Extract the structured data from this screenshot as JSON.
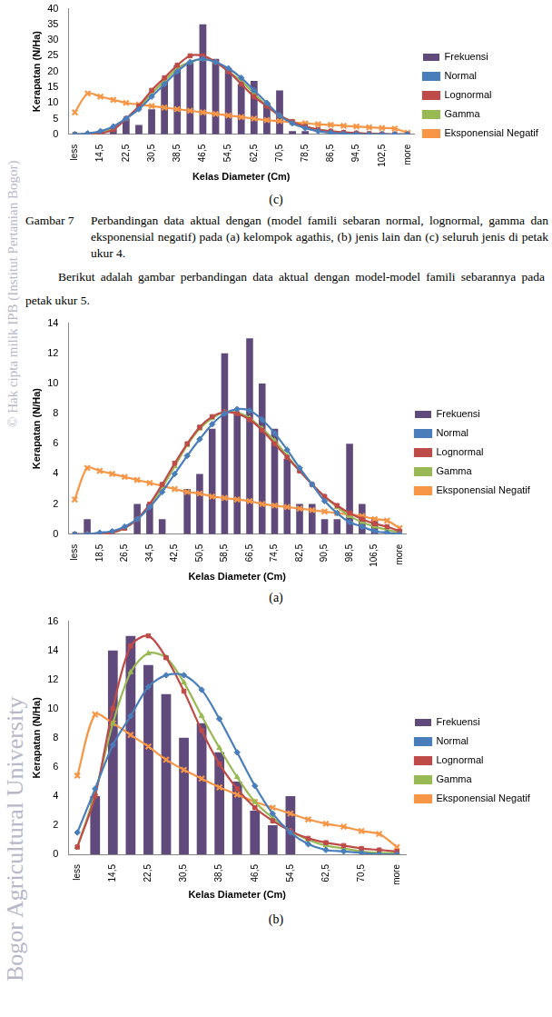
{
  "watermark": [
    "© Hak cipta milik IPB (Institut Pertanian Bogor)",
    "Bogor Agricultural University"
  ],
  "figure_caption": {
    "label": "Gambar 7",
    "text": "Perbandingan data aktual dengan (model famili sebaran normal, lognormal, gamma dan eksponensial negatif) pada (a) kelompok agathis, (b) jenis lain dan (c) seluruh jenis di petak ukur 4."
  },
  "paragraph": "Berikut adalah gambar perbandingan data aktual dengan model-model famili sebarannya pada petak ukur 5.",
  "chart_data": [
    {
      "type": "bar",
      "panel": "(c)",
      "x_label": "Kelas Diameter (Cm)",
      "y_label": "Kerapatan (N/Ha)",
      "legend": "right",
      "grid": false,
      "ylim": [
        0,
        40
      ],
      "yticks": [
        0,
        5,
        10,
        15,
        20,
        25,
        30,
        35,
        40
      ],
      "categories": [
        "less",
        null,
        "14,5",
        null,
        "22,5",
        null,
        "30,5",
        null,
        "38,5",
        null,
        "46,5",
        null,
        "54,5",
        null,
        "62,5",
        null,
        "70,5",
        null,
        "78,5",
        null,
        "86,5",
        null,
        "94,5",
        null,
        "102,5",
        null,
        "more"
      ],
      "series": [
        {
          "name": "Frekuensi",
          "type": "bar",
          "color": "#604a7b",
          "values": [
            0,
            0,
            1,
            2,
            5,
            3,
            8,
            17,
            22,
            23,
            35,
            24,
            21,
            16,
            17,
            10,
            14,
            1,
            1,
            0,
            0,
            0,
            0,
            0,
            0,
            0,
            0
          ]
        },
        {
          "name": "Normal",
          "type": "line",
          "marker": "diamond",
          "color": "#4a7ebb",
          "values": [
            0,
            0.3,
            1,
            2.5,
            5,
            8,
            12,
            16,
            20,
            23,
            24,
            23,
            21,
            18,
            14,
            10,
            6,
            3.5,
            2,
            1,
            0.5,
            0.2,
            0.1,
            0,
            0,
            0,
            0
          ]
        },
        {
          "name": "Lognormal",
          "type": "line",
          "marker": "square",
          "color": "#be4b48",
          "values": [
            0,
            0,
            0.3,
            1.5,
            5,
            9,
            14,
            18,
            22,
            25,
            25,
            23,
            20,
            16,
            12,
            9,
            6,
            4,
            2.5,
            1.5,
            1,
            0.6,
            0.4,
            0.2,
            0.1,
            0,
            0
          ]
        },
        {
          "name": "Gamma",
          "type": "line",
          "marker": "triangle",
          "color": "#98b954",
          "values": [
            0,
            0,
            0.5,
            2,
            5,
            8.5,
            13,
            17,
            21,
            23,
            24,
            23,
            20,
            17,
            13,
            9,
            6,
            4,
            2.5,
            1.5,
            1,
            0.6,
            0.4,
            0.2,
            0.1,
            0,
            0
          ]
        },
        {
          "name": "Eksponensial Negatif",
          "type": "line",
          "marker": "x",
          "color": "#f79646",
          "values": [
            7,
            13,
            12,
            11,
            10,
            9.5,
            9,
            8.5,
            8,
            7.5,
            7,
            6.5,
            6,
            5.5,
            5,
            4.5,
            4.2,
            3.8,
            3.5,
            3.2,
            3,
            2.7,
            2.5,
            2.2,
            2,
            1.8,
            0.5
          ]
        }
      ]
    },
    {
      "type": "bar",
      "panel": "(a)",
      "x_label": "Kelas Diameter (Cm)",
      "y_label": "Kerapatan (N/Ha)",
      "legend": "right",
      "grid": false,
      "ylim": [
        0,
        14
      ],
      "yticks": [
        0,
        2,
        4,
        6,
        8,
        10,
        12,
        14
      ],
      "categories": [
        "less",
        null,
        "18,5",
        null,
        "26,5",
        null,
        "34,5",
        null,
        "42,5",
        null,
        "50,5",
        null,
        "58,5",
        null,
        "66,5",
        null,
        "74,5",
        null,
        "82,5",
        null,
        "90,5",
        null,
        "98,5",
        null,
        "106,5",
        null,
        "more"
      ],
      "series": [
        {
          "name": "Frekuensi",
          "type": "bar",
          "color": "#604a7b",
          "values": [
            0,
            1,
            0,
            0,
            0,
            2,
            2,
            1,
            0,
            3,
            4,
            7,
            12,
            8,
            13,
            10,
            7,
            5,
            2,
            2,
            1,
            1,
            6,
            2,
            1,
            0,
            0
          ]
        },
        {
          "name": "Normal",
          "type": "line",
          "marker": "diamond",
          "color": "#4a7ebb",
          "values": [
            0,
            0,
            0.1,
            0.2,
            0.5,
            1,
            1.8,
            2.8,
            4,
            5.2,
            6.3,
            7.3,
            8,
            8.3,
            8.2,
            7.6,
            6.7,
            5.6,
            4.4,
            3.3,
            2.2,
            1.4,
            0.8,
            0.5,
            0.2,
            0.1,
            0
          ]
        },
        {
          "name": "Lognormal",
          "type": "line",
          "marker": "square",
          "color": "#be4b48",
          "values": [
            0,
            0,
            0,
            0.1,
            0.4,
            1,
            2,
            3.3,
            4.7,
            6,
            7.1,
            7.8,
            8.1,
            8,
            7.6,
            6.9,
            6,
            5.1,
            4.2,
            3.3,
            2.5,
            1.9,
            1.4,
            1,
            0.7,
            0.5,
            0.2
          ]
        },
        {
          "name": "Gamma",
          "type": "line",
          "marker": "triangle",
          "color": "#98b954",
          "values": [
            0,
            0,
            0,
            0.1,
            0.4,
            1,
            1.9,
            3.1,
            4.5,
            5.9,
            7,
            7.7,
            8.1,
            8.1,
            7.7,
            7,
            6.2,
            5.2,
            4.2,
            3.3,
            2.5,
            1.8,
            1.2,
            0.8,
            0.5,
            0.3,
            0.1
          ]
        },
        {
          "name": "Eksponensial Negatif",
          "type": "line",
          "marker": "x",
          "color": "#f79646",
          "values": [
            2.3,
            4.4,
            4.2,
            4,
            3.8,
            3.6,
            3.4,
            3.2,
            3,
            2.8,
            2.7,
            2.5,
            2.4,
            2.3,
            2.2,
            2,
            1.9,
            1.8,
            1.7,
            1.6,
            1.5,
            1.4,
            1.3,
            1.2,
            1,
            0.9,
            0.4
          ]
        }
      ]
    },
    {
      "type": "bar",
      "panel": "(b)",
      "x_label": "Kelas Diameter (Cm)",
      "y_label": "Kerapatan (N/Ha)",
      "legend": "right",
      "grid": false,
      "ylim": [
        0,
        16
      ],
      "yticks": [
        0,
        2,
        4,
        6,
        8,
        10,
        12,
        14,
        16
      ],
      "categories": [
        "less",
        null,
        "14,5",
        null,
        "22,5",
        null,
        "30,5",
        null,
        "38,5",
        null,
        "46,5",
        null,
        "54,5",
        null,
        "62,5",
        null,
        "70,5",
        null,
        "more"
      ],
      "series": [
        {
          "name": "Frekuensi",
          "type": "bar",
          "color": "#604a7b",
          "values": [
            0,
            4,
            14,
            15,
            13,
            11,
            8,
            9,
            7,
            5,
            3,
            2,
            4,
            0,
            0,
            0,
            0,
            0,
            0
          ]
        },
        {
          "name": "Normal",
          "type": "line",
          "marker": "diamond",
          "color": "#4a7ebb",
          "values": [
            1.5,
            4.5,
            7.5,
            9.5,
            11.5,
            12.3,
            12.3,
            11.3,
            9.3,
            7,
            4.7,
            2.8,
            1.5,
            0.7,
            0.3,
            0.2,
            0.1,
            0,
            0
          ]
        },
        {
          "name": "Lognormal",
          "type": "line",
          "marker": "square",
          "color": "#be4b48",
          "values": [
            0.5,
            4,
            10,
            14.3,
            15,
            13.5,
            11.2,
            8.5,
            6.2,
            4.5,
            3.2,
            2.3,
            1.6,
            1.1,
            0.8,
            0.6,
            0.4,
            0.3,
            0.2
          ]
        },
        {
          "name": "Gamma",
          "type": "line",
          "marker": "triangle",
          "color": "#98b954",
          "values": [
            0.5,
            4.2,
            9,
            12.5,
            13.8,
            13.5,
            11.8,
            9.5,
            7.3,
            5.3,
            3.6,
            2.5,
            1.6,
            1,
            0.6,
            0.4,
            0.2,
            0.1,
            0.1
          ]
        },
        {
          "name": "Eksponensial Negatif",
          "type": "line",
          "marker": "x",
          "color": "#f79646",
          "values": [
            5.4,
            9.6,
            9,
            8.2,
            7.4,
            6.5,
            5.8,
            5.2,
            4.6,
            4.1,
            3.6,
            3.2,
            2.8,
            2.4,
            2.1,
            1.9,
            1.6,
            1.4,
            0.5
          ]
        }
      ]
    }
  ]
}
